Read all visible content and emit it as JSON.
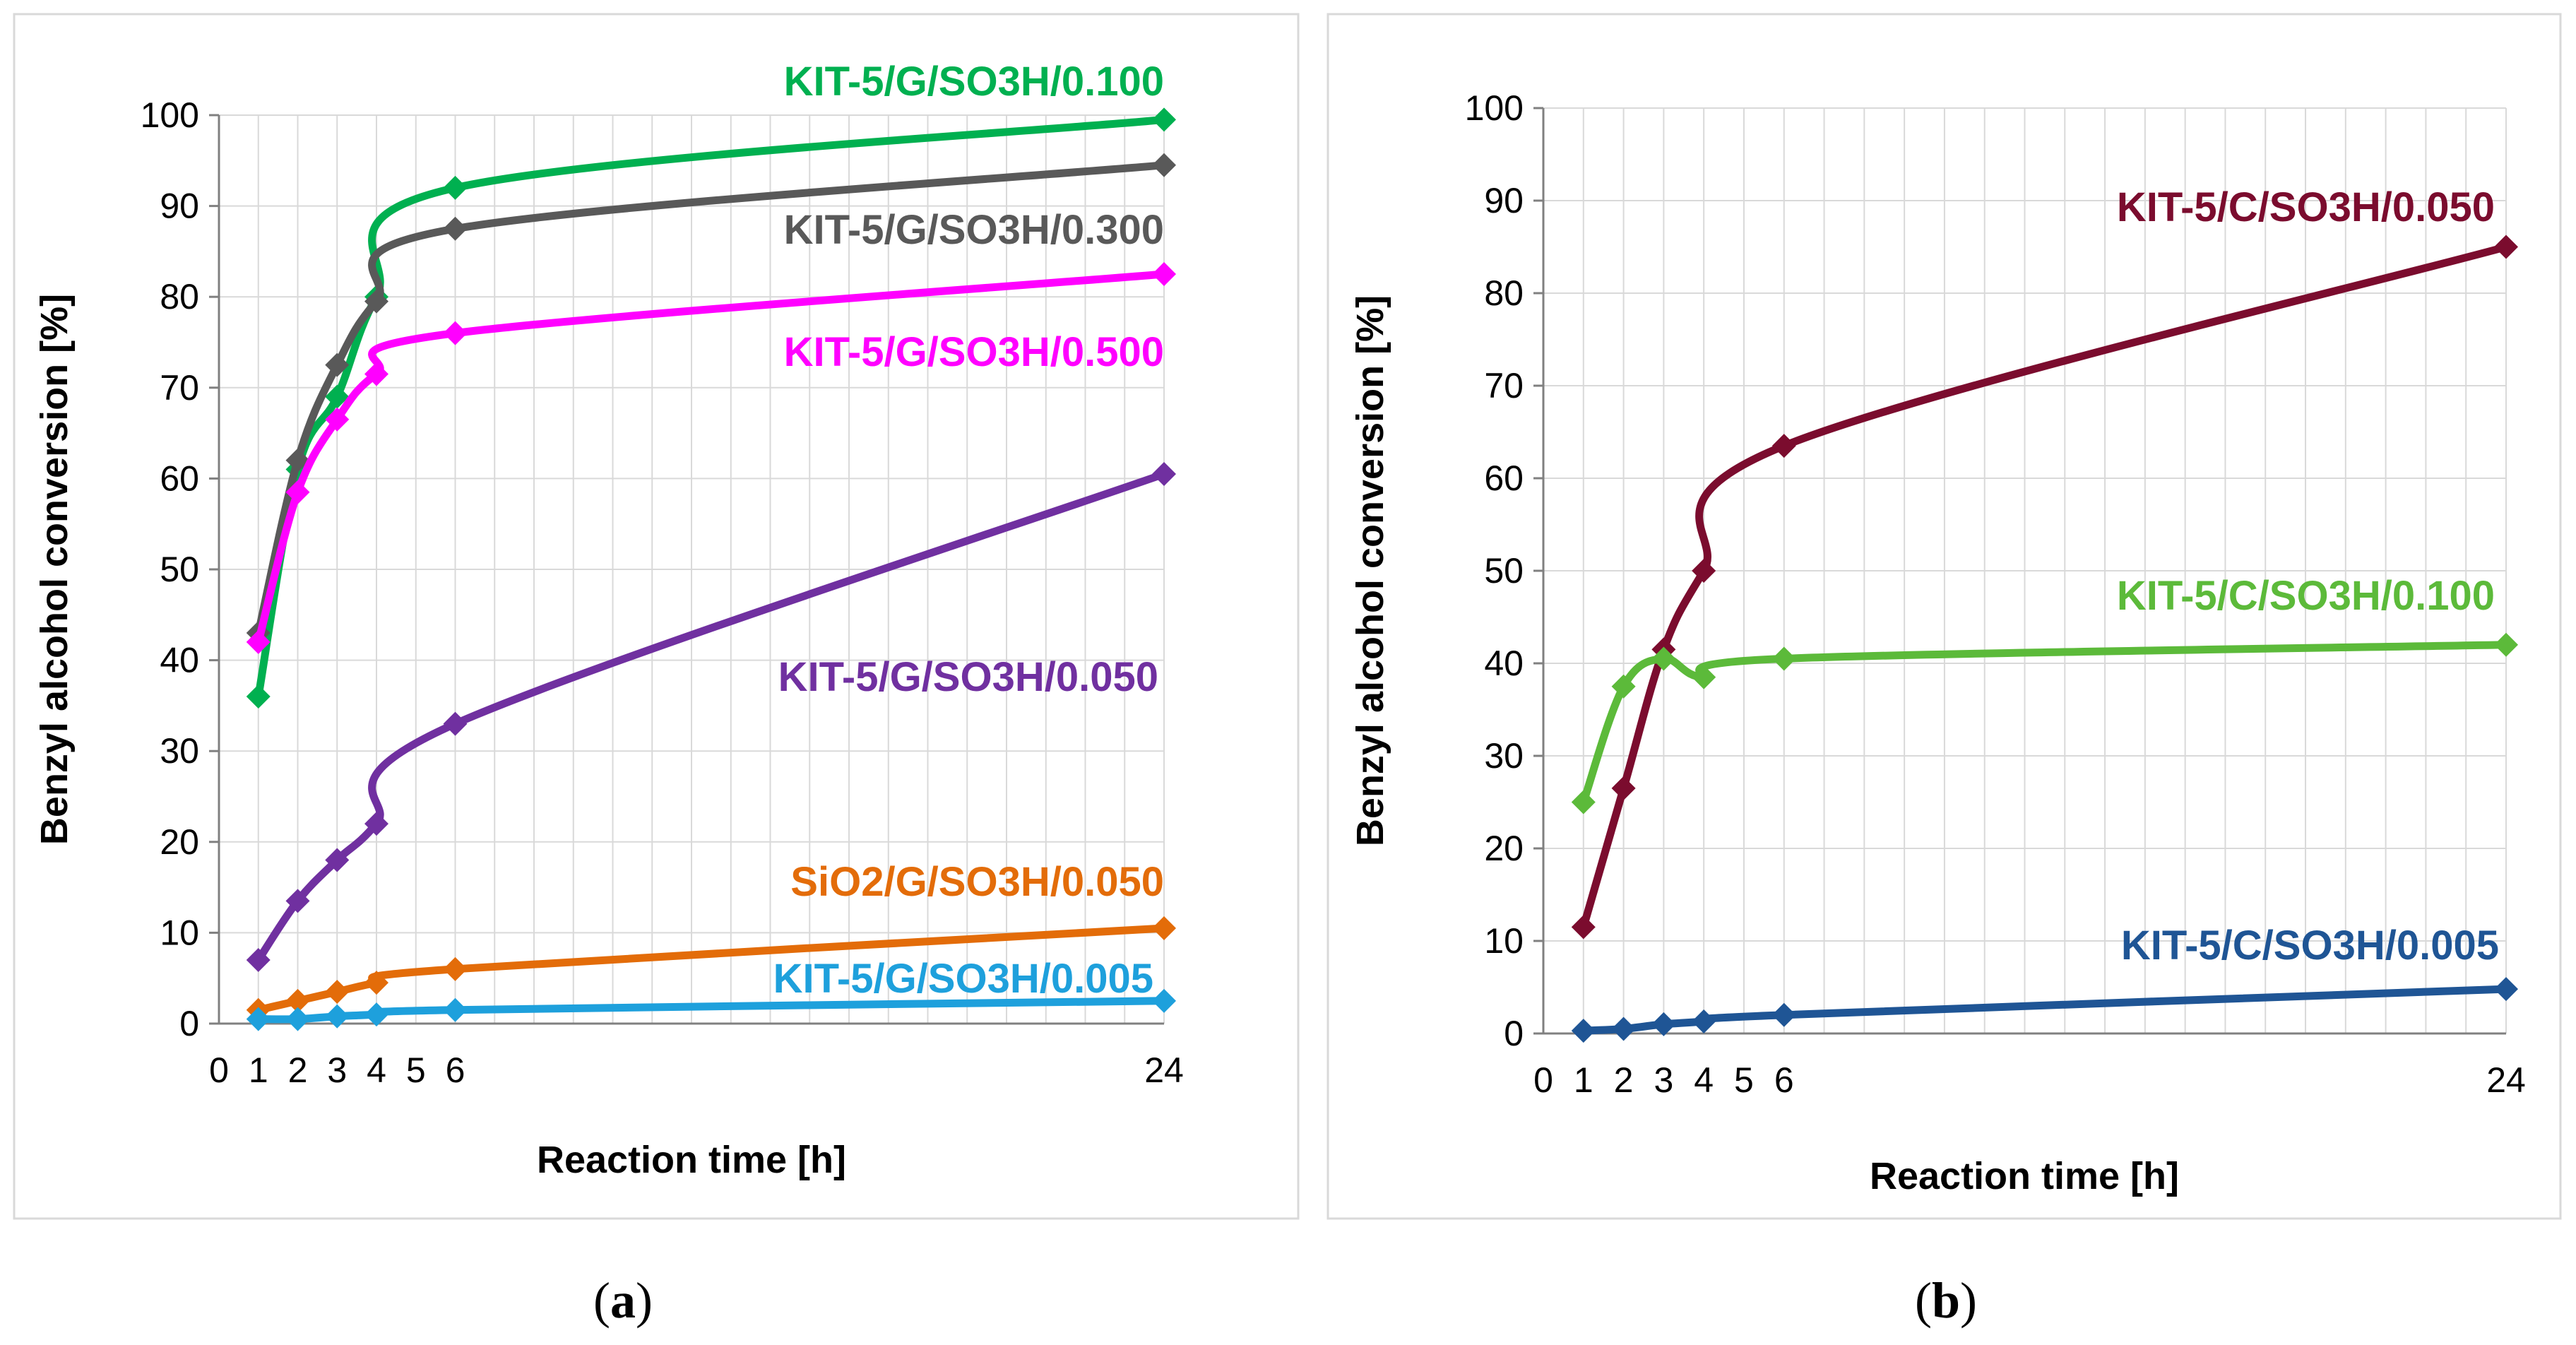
{
  "chart_data": [
    {
      "type": "line",
      "panel": "a",
      "caption_open": "(",
      "caption_letter": "a",
      "caption_close": ")",
      "title": "",
      "xlabel": "Reaction time [h]",
      "ylabel": "Benzyl alcohol conversion [%]",
      "xlim": [
        0,
        24
      ],
      "ylim": [
        0,
        100
      ],
      "xticks": [
        0,
        1,
        2,
        3,
        4,
        5,
        6,
        24
      ],
      "yticks": [
        0,
        10,
        20,
        30,
        40,
        50,
        60,
        70,
        80,
        90,
        100
      ],
      "grid": true,
      "series": [
        {
          "name": "KIT-5/G/SO3H/0.100",
          "color": "#00b050",
          "x": [
            1,
            2,
            3,
            4,
            6,
            24
          ],
          "values": [
            36,
            61,
            69,
            80,
            92,
            99.5
          ]
        },
        {
          "name": "KIT-5/G/SO3H/0.300",
          "color": "#595959",
          "x": [
            1,
            2,
            3,
            4,
            6,
            24
          ],
          "values": [
            43,
            62,
            72.5,
            79.5,
            87.5,
            94.5
          ]
        },
        {
          "name": "KIT-5/G/SO3H/0.500",
          "color": "#ff00ff",
          "x": [
            1,
            2,
            3,
            4,
            6,
            24
          ],
          "values": [
            42,
            58.5,
            66.5,
            71.5,
            76,
            82.5
          ]
        },
        {
          "name": "KIT-5/G/SO3H/0.050",
          "color": "#7030a0",
          "x": [
            1,
            2,
            3,
            4,
            6,
            24
          ],
          "values": [
            7,
            13.5,
            18,
            22,
            33,
            60.5
          ]
        },
        {
          "name": "SiO2/G/SO3H/0.050",
          "color": "#e36c09",
          "x": [
            1,
            2,
            3,
            4,
            6,
            24
          ],
          "values": [
            1.5,
            2.5,
            3.5,
            4.5,
            6,
            10.5
          ]
        },
        {
          "name": "KIT-5/G/SO3H/0.005",
          "color": "#1ea0dc",
          "x": [
            1,
            2,
            3,
            4,
            6,
            24
          ],
          "values": [
            0.5,
            0.5,
            0.8,
            1,
            1.5,
            2.5
          ]
        }
      ]
    },
    {
      "type": "line",
      "panel": "b",
      "caption_open": "(",
      "caption_letter": "b",
      "caption_close": ")",
      "title": "",
      "xlabel": "Reaction time [h]",
      "ylabel": "Benzyl alcohol conversion [%]",
      "xlim": [
        0,
        24
      ],
      "ylim": [
        0,
        100
      ],
      "xticks": [
        0,
        1,
        2,
        3,
        4,
        5,
        6,
        24
      ],
      "yticks": [
        0,
        10,
        20,
        30,
        40,
        50,
        60,
        70,
        80,
        90,
        100
      ],
      "grid": true,
      "series": [
        {
          "name": "KIT-5/C/SO3H/0.050",
          "color": "#7b0c2e",
          "x": [
            1,
            2,
            3,
            4,
            6,
            24
          ],
          "values": [
            11.5,
            26.5,
            41.5,
            50,
            63.5,
            85
          ]
        },
        {
          "name": "KIT-5/C/SO3H/0.100",
          "color": "#5cba3a",
          "x": [
            1,
            2,
            3,
            4,
            6,
            24
          ],
          "values": [
            25,
            37.5,
            40.5,
            38.5,
            40.5,
            42
          ]
        },
        {
          "name": "KIT-5/C/SO3H/0.005",
          "color": "#1f5595",
          "x": [
            1,
            2,
            3,
            4,
            6,
            24
          ],
          "values": [
            0.3,
            0.5,
            1,
            1.3,
            2,
            4.8
          ]
        }
      ]
    }
  ]
}
